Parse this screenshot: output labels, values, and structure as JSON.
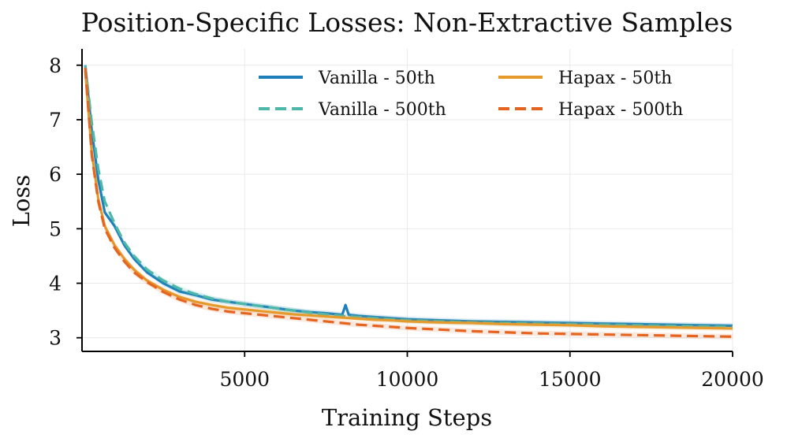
{
  "chart_data": {
    "type": "line",
    "title": "Position-Specific Losses: Non-Extractive Samples",
    "xlabel": "Training Steps",
    "ylabel": "Loss",
    "xlim": [
      0,
      20000
    ],
    "ylim": [
      2.75,
      8.3
    ],
    "xticks": [
      5000,
      10000,
      15000,
      20000
    ],
    "yticks": [
      3,
      4,
      5,
      6,
      7,
      8
    ],
    "grid": true,
    "legend_position": "top-right",
    "series": [
      {
        "name": "Vanilla - 50th",
        "color": "#1f7fba",
        "dash": "solid",
        "x": [
          100,
          300,
          500,
          700,
          1000,
          1300,
          1600,
          2000,
          2500,
          3000,
          3500,
          4000,
          4500,
          5000,
          5500,
          6000,
          6500,
          7000,
          7500,
          8000,
          8100,
          8200,
          8500,
          9000,
          9500,
          10000,
          11000,
          12000,
          13000,
          14000,
          15000,
          16000,
          17000,
          18000,
          19000,
          20000
        ],
        "y": [
          8.0,
          6.8,
          5.9,
          5.3,
          5.05,
          4.7,
          4.45,
          4.2,
          4.0,
          3.85,
          3.78,
          3.7,
          3.66,
          3.62,
          3.58,
          3.54,
          3.5,
          3.47,
          3.45,
          3.42,
          3.6,
          3.42,
          3.4,
          3.38,
          3.36,
          3.34,
          3.32,
          3.3,
          3.29,
          3.28,
          3.27,
          3.26,
          3.25,
          3.24,
          3.23,
          3.22
        ]
      },
      {
        "name": "Vanilla - 500th",
        "color": "#4db8a8",
        "dash": "dashed",
        "x": [
          100,
          300,
          500,
          700,
          1000,
          1300,
          1600,
          2000,
          2500,
          3000,
          3500,
          4000,
          4500,
          5000,
          5500,
          6000,
          6500,
          7000,
          7500,
          8000,
          8500,
          9000,
          9500,
          10000,
          11000,
          12000,
          13000,
          14000,
          15000,
          16000,
          17000,
          18000,
          19000,
          20000
        ],
        "y": [
          8.0,
          6.95,
          6.1,
          5.5,
          5.1,
          4.75,
          4.5,
          4.25,
          4.05,
          3.9,
          3.8,
          3.72,
          3.66,
          3.62,
          3.58,
          3.54,
          3.5,
          3.46,
          3.43,
          3.4,
          3.38,
          3.36,
          3.34,
          3.32,
          3.3,
          3.28,
          3.27,
          3.26,
          3.25,
          3.24,
          3.23,
          3.22,
          3.21,
          3.2
        ]
      },
      {
        "name": "Hapax - 50th",
        "color": "#e69a2c",
        "dash": "solid",
        "x": [
          100,
          300,
          500,
          700,
          1000,
          1300,
          1600,
          2000,
          2500,
          3000,
          3500,
          4000,
          4500,
          5000,
          5500,
          6000,
          6500,
          7000,
          7500,
          8000,
          8500,
          9000,
          9500,
          10000,
          11000,
          12000,
          13000,
          14000,
          15000,
          16000,
          17000,
          18000,
          19000,
          20000
        ],
        "y": [
          7.9,
          6.4,
          5.55,
          5.05,
          4.7,
          4.45,
          4.25,
          4.05,
          3.88,
          3.75,
          3.66,
          3.6,
          3.55,
          3.52,
          3.49,
          3.46,
          3.43,
          3.41,
          3.39,
          3.37,
          3.35,
          3.33,
          3.32,
          3.3,
          3.28,
          3.27,
          3.25,
          3.24,
          3.23,
          3.21,
          3.2,
          3.19,
          3.18,
          3.17
        ]
      },
      {
        "name": "Hapax - 500th",
        "color": "#e5641f",
        "dash": "dashed",
        "x": [
          100,
          300,
          500,
          700,
          1000,
          1300,
          1600,
          2000,
          2500,
          3000,
          3500,
          4000,
          4500,
          5000,
          5500,
          6000,
          6500,
          7000,
          7500,
          8000,
          8500,
          9000,
          9500,
          10000,
          11000,
          12000,
          13000,
          14000,
          15000,
          16000,
          17000,
          18000,
          19000,
          20000
        ],
        "y": [
          7.95,
          6.35,
          5.5,
          5.0,
          4.65,
          4.4,
          4.2,
          4.02,
          3.84,
          3.7,
          3.6,
          3.53,
          3.48,
          3.45,
          3.42,
          3.39,
          3.36,
          3.33,
          3.3,
          3.27,
          3.24,
          3.22,
          3.2,
          3.18,
          3.15,
          3.12,
          3.1,
          3.08,
          3.07,
          3.06,
          3.05,
          3.04,
          3.03,
          3.02
        ]
      }
    ]
  }
}
